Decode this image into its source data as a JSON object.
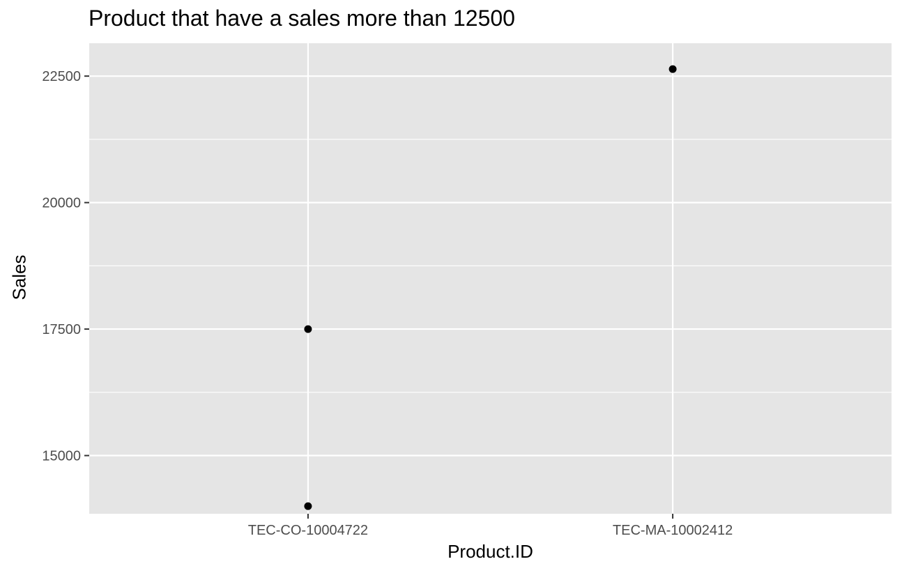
{
  "chart_data": {
    "type": "scatter",
    "title": "Product that have a sales more than 12500",
    "xlabel": "Product.ID",
    "ylabel": "Sales",
    "categories": [
      "TEC-CO-10004722",
      "TEC-MA-10002412"
    ],
    "points": [
      {
        "x": "TEC-CO-10004722",
        "y": 17500
      },
      {
        "x": "TEC-CO-10004722",
        "y": 14000
      },
      {
        "x": "TEC-MA-10002412",
        "y": 22638
      }
    ],
    "ylim": [
      13850,
      23150
    ],
    "yticks": [
      15000,
      17500,
      20000,
      22500
    ],
    "yticks_minor": [
      13750,
      16250,
      18750,
      21250
    ],
    "grid": true,
    "panel_background": "#e5e5e5",
    "point_color": "#000000"
  }
}
